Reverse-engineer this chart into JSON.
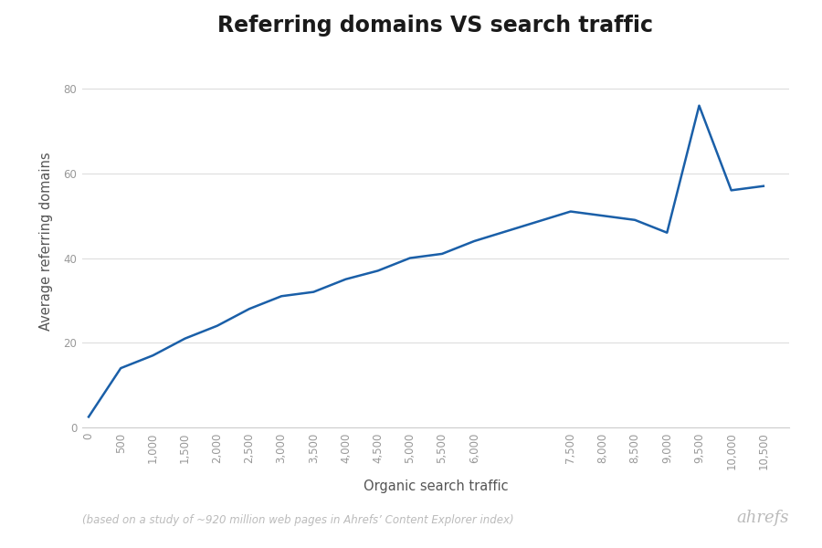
{
  "title": "Referring domains VS search traffic",
  "xlabel": "Organic search traffic",
  "ylabel": "Average referring domains",
  "footnote": "(based on a study of ~920 million web pages in Ahrefs’ Content Explorer index)",
  "ahrefs_label": "ahrefs",
  "line_color": "#1a5fa8",
  "background_color": "#ffffff",
  "x": [
    0,
    500,
    1000,
    1500,
    2000,
    2500,
    3000,
    3500,
    4000,
    4500,
    5000,
    5500,
    6000,
    7500,
    8000,
    8500,
    9000,
    9500,
    10000,
    10500
  ],
  "y": [
    2.5,
    14,
    17,
    21,
    24,
    28,
    31,
    32,
    35,
    37,
    40,
    41,
    44,
    51,
    50,
    49,
    46,
    76,
    56,
    57
  ],
  "xlim": [
    -100,
    10900
  ],
  "ylim": [
    0,
    88
  ],
  "yticks": [
    0,
    20,
    40,
    60,
    80
  ],
  "xtick_labels": [
    "0",
    "500",
    "1,000",
    "1,500",
    "2,000",
    "2,500",
    "3,000",
    "3,500",
    "4,000",
    "4,500",
    "5,000",
    "5,500",
    "6,000",
    "7,500",
    "8,000",
    "8,500",
    "9,000",
    "9,500",
    "10,000",
    "10,500"
  ],
  "title_fontsize": 17,
  "axis_label_fontsize": 10.5,
  "tick_fontsize": 8.5,
  "footnote_fontsize": 8.5,
  "ahrefs_fontsize": 13,
  "grid_color": "#dddddd",
  "spine_color": "#cccccc",
  "tick_color": "#999999",
  "label_color": "#555555",
  "title_color": "#1a1a1a",
  "footnote_color": "#bbbbbb",
  "ahrefs_color": "#bbbbbb"
}
